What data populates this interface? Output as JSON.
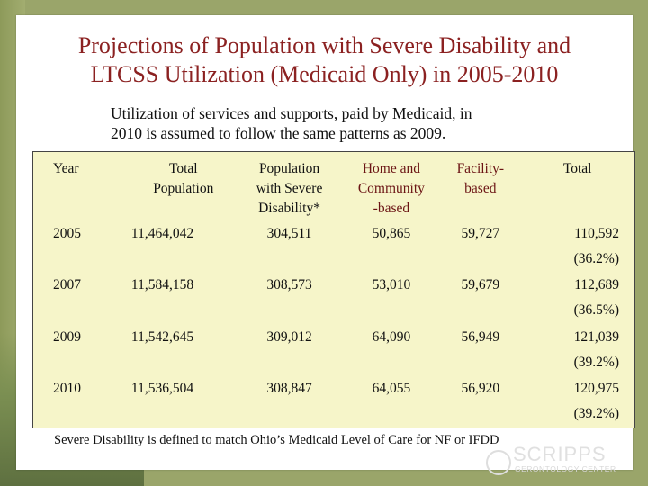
{
  "title": {
    "line1": "Projections of Population with Severe Disability and",
    "line2": "LTCSS Utilization (Medicaid Only) in  2005-2010"
  },
  "subtitle": {
    "line1": "Utilization of services and supports, paid by Medicaid, in",
    "line2": "2010 is assumed to follow the same patterns as 2009."
  },
  "table": {
    "headers": {
      "year": "Year",
      "total_population": [
        "Total",
        "Population"
      ],
      "population_severe": [
        "Population",
        "with Severe",
        "Disability*"
      ],
      "home_community": [
        "Home and",
        "Community",
        "-based"
      ],
      "facility": [
        "Facility-",
        "based"
      ],
      "total": "Total"
    },
    "rows": [
      {
        "year": "2005",
        "total_population": "11,464,042",
        "population_severe": "304,511",
        "home_community": "50,865",
        "facility": "59,727",
        "total": "110,592",
        "total_pct": "(36.2%)"
      },
      {
        "year": "2007",
        "total_population": "11,584,158",
        "population_severe": "308,573",
        "home_community": "53,010",
        "facility": "59,679",
        "total": "112,689",
        "total_pct": "(36.5%)"
      },
      {
        "year": "2009",
        "total_population": "11,542,645",
        "population_severe": "309,012",
        "home_community": "64,090",
        "facility": "56,949",
        "total": "121,039",
        "total_pct": "(39.2%)"
      },
      {
        "year": "2010",
        "total_population": "11,536,504",
        "population_severe": "308,847",
        "home_community": "64,055",
        "facility": "56,920",
        "total": "120,975",
        "total_pct": "(39.2%)"
      }
    ]
  },
  "footnote": "Severe Disability is defined to match Ohio’s Medicaid Level of Care for NF or IFDD",
  "logo": {
    "main": "SCRIPPS",
    "sub": "GERONTOLOGY CENTER"
  },
  "colors": {
    "title": "#8b2121",
    "table_bg": "#f6f5c9",
    "page_bg": "#9aa56a"
  }
}
